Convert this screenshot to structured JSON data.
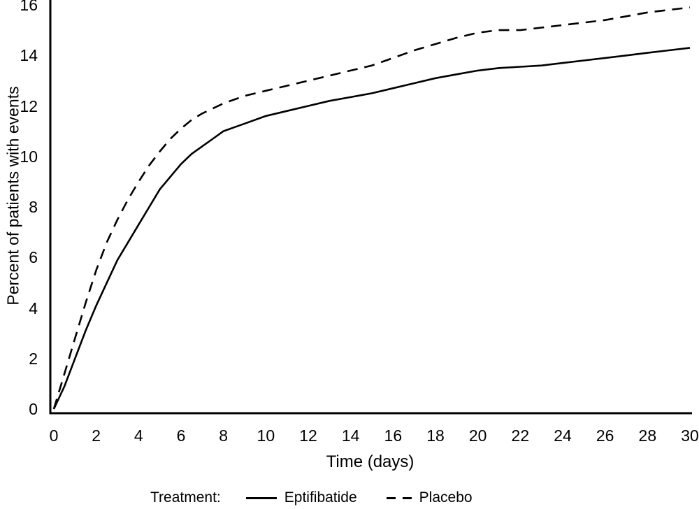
{
  "figure": {
    "background": "#ffffff",
    "line_color": "#000000",
    "text_color": "#000000"
  },
  "chart_data": {
    "type": "line",
    "title": "",
    "xlabel": "Time (days)",
    "ylabel": "Percent of patients with events",
    "xlim": [
      0,
      30
    ],
    "ylim": [
      0,
      16
    ],
    "x_ticks": [
      0,
      2,
      4,
      6,
      8,
      10,
      12,
      14,
      16,
      18,
      20,
      22,
      24,
      26,
      28,
      30
    ],
    "y_ticks": [
      0,
      2,
      4,
      6,
      8,
      10,
      12,
      14,
      16
    ],
    "grid": false,
    "legend_label": "Treatment:",
    "legend_position": "bottom",
    "series": [
      {
        "name": "Eptifibatide",
        "line_style": "solid",
        "color": "#000000",
        "x": [
          0,
          0.5,
          1,
          1.5,
          2,
          2.5,
          3,
          3.5,
          4,
          4.5,
          5,
          5.5,
          6,
          6.5,
          7,
          7.5,
          8,
          8.5,
          9,
          10,
          11,
          12,
          13,
          14,
          15,
          16,
          17,
          18,
          19,
          20,
          21,
          22,
          23,
          24,
          25,
          26,
          27,
          28,
          29,
          30
        ],
        "y": [
          0,
          0.9,
          2.0,
          3.1,
          4.1,
          5.0,
          5.9,
          6.6,
          7.3,
          8.0,
          8.7,
          9.2,
          9.7,
          10.1,
          10.4,
          10.7,
          11.0,
          11.15,
          11.3,
          11.6,
          11.8,
          12.0,
          12.2,
          12.35,
          12.5,
          12.7,
          12.9,
          13.1,
          13.25,
          13.4,
          13.5,
          13.55,
          13.6,
          13.7,
          13.8,
          13.9,
          14.0,
          14.1,
          14.2,
          14.3
        ]
      },
      {
        "name": "Placebo",
        "line_style": "dashed",
        "color": "#000000",
        "x": [
          0,
          0.5,
          1,
          1.5,
          2,
          2.5,
          3,
          3.5,
          4,
          4.5,
          5,
          5.5,
          6,
          6.5,
          7,
          7.5,
          8,
          8.5,
          9,
          10,
          11,
          12,
          13,
          14,
          15,
          16,
          17,
          18,
          19,
          20,
          21,
          22,
          23,
          24,
          25,
          26,
          27,
          28,
          29,
          30
        ],
        "y": [
          0,
          1.4,
          2.8,
          4.2,
          5.5,
          6.6,
          7.5,
          8.3,
          9.0,
          9.65,
          10.2,
          10.7,
          11.1,
          11.45,
          11.7,
          11.9,
          12.1,
          12.25,
          12.4,
          12.6,
          12.8,
          13.0,
          13.2,
          13.4,
          13.6,
          13.9,
          14.2,
          14.45,
          14.7,
          14.9,
          15.0,
          15.0,
          15.1,
          15.2,
          15.3,
          15.4,
          15.55,
          15.7,
          15.8,
          15.9
        ]
      }
    ]
  }
}
